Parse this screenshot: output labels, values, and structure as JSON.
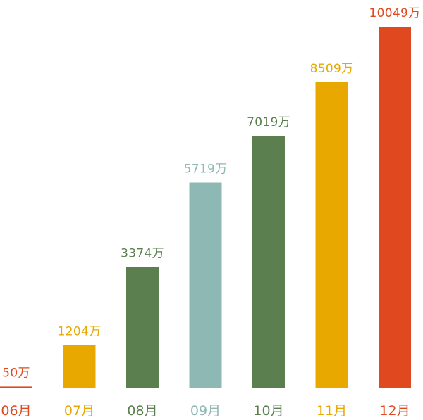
{
  "chart_data": {
    "type": "bar",
    "title": "",
    "xlabel": "",
    "ylabel": "",
    "categories": [
      "06月",
      "07月",
      "08月",
      "09月",
      "10月",
      "11月",
      "12月"
    ],
    "values": [
      50,
      1204,
      3374,
      5719,
      7019,
      8509,
      10049
    ],
    "value_labels": [
      "50万",
      "1204万",
      "3374万",
      "5719万",
      "7019万",
      "8509万",
      "10049万"
    ],
    "colors": [
      "#e0491f",
      "#e8a800",
      "#5b7f4e",
      "#8db8b3",
      "#5b7f4e",
      "#e8a800",
      "#e0491f"
    ],
    "ylim": [
      0,
      10049
    ],
    "grid": false,
    "legend": "none"
  }
}
